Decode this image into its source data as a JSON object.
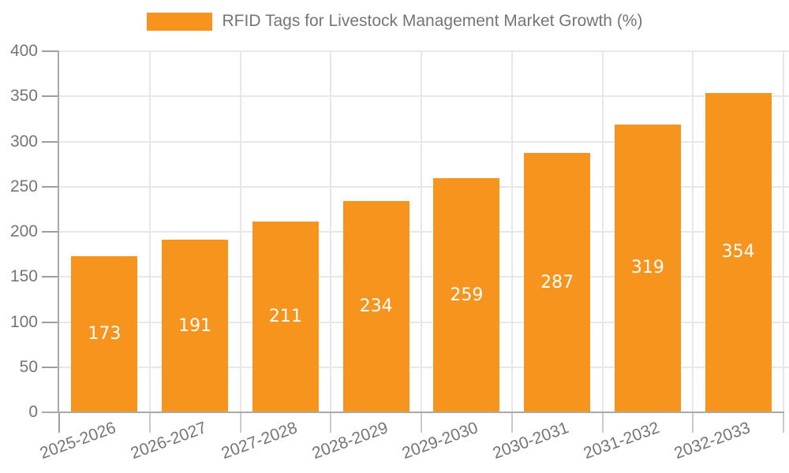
{
  "chart_data": {
    "type": "bar",
    "title": "RFID Tags for Livestock Management Market Growth (%)",
    "categories": [
      "2025-2026",
      "2026-2027",
      "2027-2028",
      "2028-2029",
      "2029-2030",
      "2030-2031",
      "2031-2032",
      "2032-2033"
    ],
    "values": [
      173,
      191,
      211,
      234,
      259,
      287,
      319,
      354
    ],
    "xlabel": "",
    "ylabel": "",
    "ylim": [
      0,
      400
    ],
    "yticks": [
      0,
      50,
      100,
      150,
      200,
      250,
      300,
      350,
      400
    ],
    "grid": true,
    "legend_position": "top-center",
    "bar_label_position": "inside-center",
    "x_tick_label_rotation_deg": -20
  },
  "colors": {
    "bar": "#F7941E",
    "bar_label": "#FFFFFF",
    "axis_line": "#A9A9A9",
    "grid_line": "#E7E7E7",
    "y_tick": "#9E9E9E",
    "x_tick": "#CBCBCB",
    "tick_label": "#757575",
    "legend_text": "#757575",
    "background": "#FFFFFF"
  }
}
